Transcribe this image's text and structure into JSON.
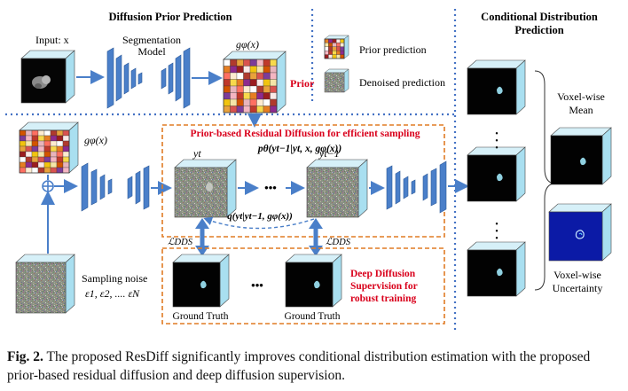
{
  "sections": {
    "prior_title": "Diffusion Prior Prediction",
    "conditional_title_line1": "Conditional Distribution",
    "conditional_title_line2": "Prediction"
  },
  "labels": {
    "input": "Input: x",
    "seg_model_line1": "Segmentation",
    "seg_model_line2": "Model",
    "g_phi_top": "gφ(x)",
    "g_phi_left": "gφ(x)",
    "prior_tag": "Prior",
    "legend_prior": "Prior prediction",
    "legend_denoised": "Denoised prediction",
    "residual_title": "Prior-based Residual Diffusion for efficient sampling",
    "p_theta": "pθ(yt−1|yt, x, gφ(x))",
    "y_t": "yt",
    "y_t_minus_1": "yt−1",
    "q_formula": "q(yt|yt−1, gφ(x))",
    "l_dds_left": "ℒDDS",
    "l_dds_right": "ℒDDS",
    "ellipsis": "•••",
    "sampling_noise": "Sampling noise",
    "epsilons": "ε1, ε2, .... εN",
    "deep_supervision_line1": "Deep Diffusion",
    "deep_supervision_line2": "Supervision for",
    "deep_supervision_line3": "robust training",
    "ground_truth_left": "Ground Truth",
    "ground_truth_right": "Ground Truth",
    "voxel_mean_line1": "Voxel-wise",
    "voxel_mean_line2": "Mean",
    "voxel_unc_line1": "Voxel-wise",
    "voxel_unc_line2": "Uncertainty",
    "vdots": "•"
  },
  "caption": {
    "fig_label": "Fig. 2.",
    "text": " The proposed ResDiff significantly improves conditional distribution estimation with the proposed prior-based residual diffusion and deep diffusion supervision."
  },
  "colors": {
    "dotted_blue": "#4472c4",
    "orange_dashed": "#e07b24",
    "red_text": "#d9001b",
    "network_blue": "#4a7fc9",
    "arrow_blue": "#4a7fc9",
    "cube_side": "#a9dff0",
    "cube_top": "#d6f0f8"
  }
}
